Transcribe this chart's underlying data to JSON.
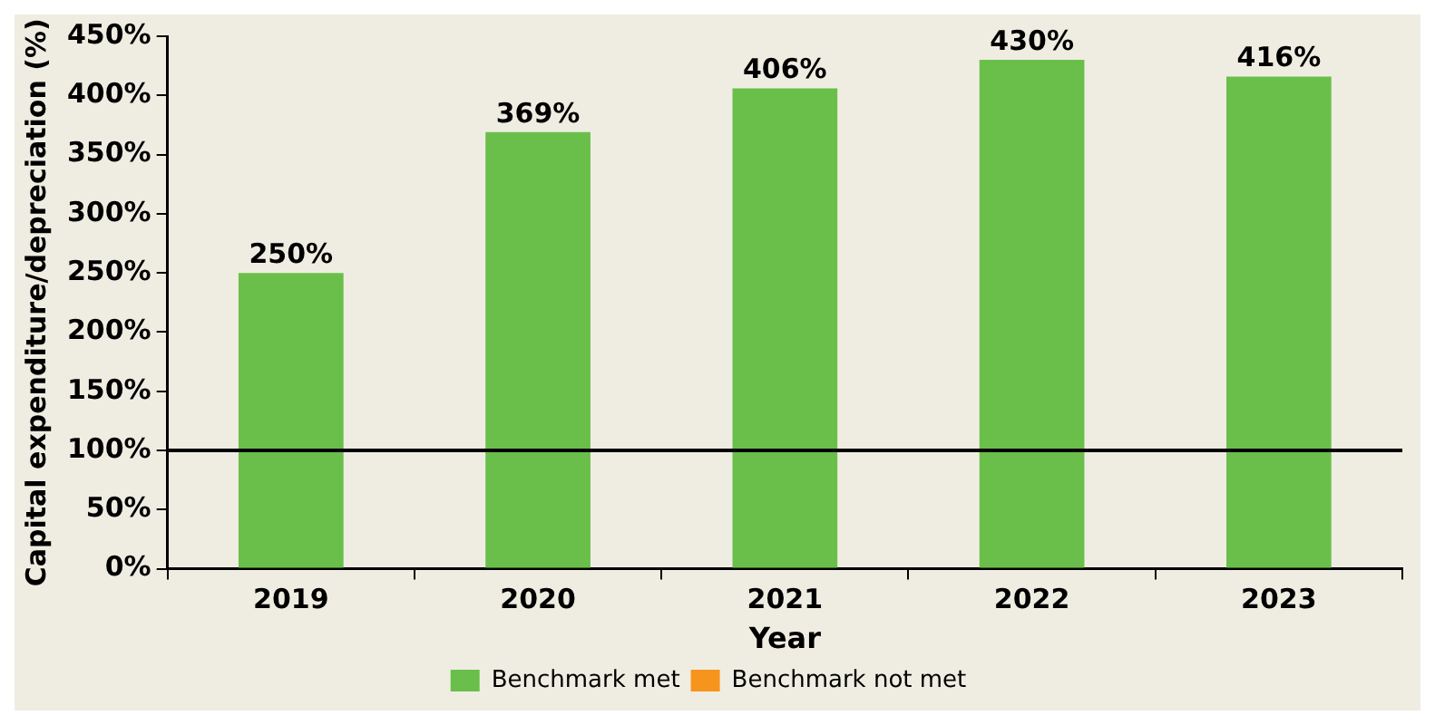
{
  "chart_data": {
    "type": "bar",
    "xlabel": "Year",
    "ylabel": "Capital expenditure/depreciation (%)",
    "categories": [
      "2019",
      "2020",
      "2021",
      "2022",
      "2023"
    ],
    "series": [
      {
        "name": "Benchmark met",
        "color": "#6abf4b",
        "values": [
          250,
          369,
          406,
          430,
          416
        ],
        "value_labels": [
          "250%",
          "369%",
          "406%",
          "430%",
          "416%"
        ]
      },
      {
        "name": "Benchmark not met",
        "color": "#f7941d",
        "values": [
          null,
          null,
          null,
          null,
          null
        ]
      }
    ],
    "ylim": [
      0,
      450
    ],
    "yticks": [
      {
        "value": 0,
        "label": "0%"
      },
      {
        "value": 50,
        "label": "50%"
      },
      {
        "value": 100,
        "label": "100%"
      },
      {
        "value": 150,
        "label": "150%"
      },
      {
        "value": 200,
        "label": "200%"
      },
      {
        "value": 250,
        "label": "250%"
      },
      {
        "value": 300,
        "label": "300%"
      },
      {
        "value": 350,
        "label": "350%"
      },
      {
        "value": 400,
        "label": "400%"
      },
      {
        "value": 450,
        "label": "450%"
      }
    ],
    "ref_lines": [
      {
        "axis": "y",
        "value": 100,
        "color": "#000000"
      }
    ],
    "grid": false,
    "legend": "bottom",
    "stacked": true
  }
}
